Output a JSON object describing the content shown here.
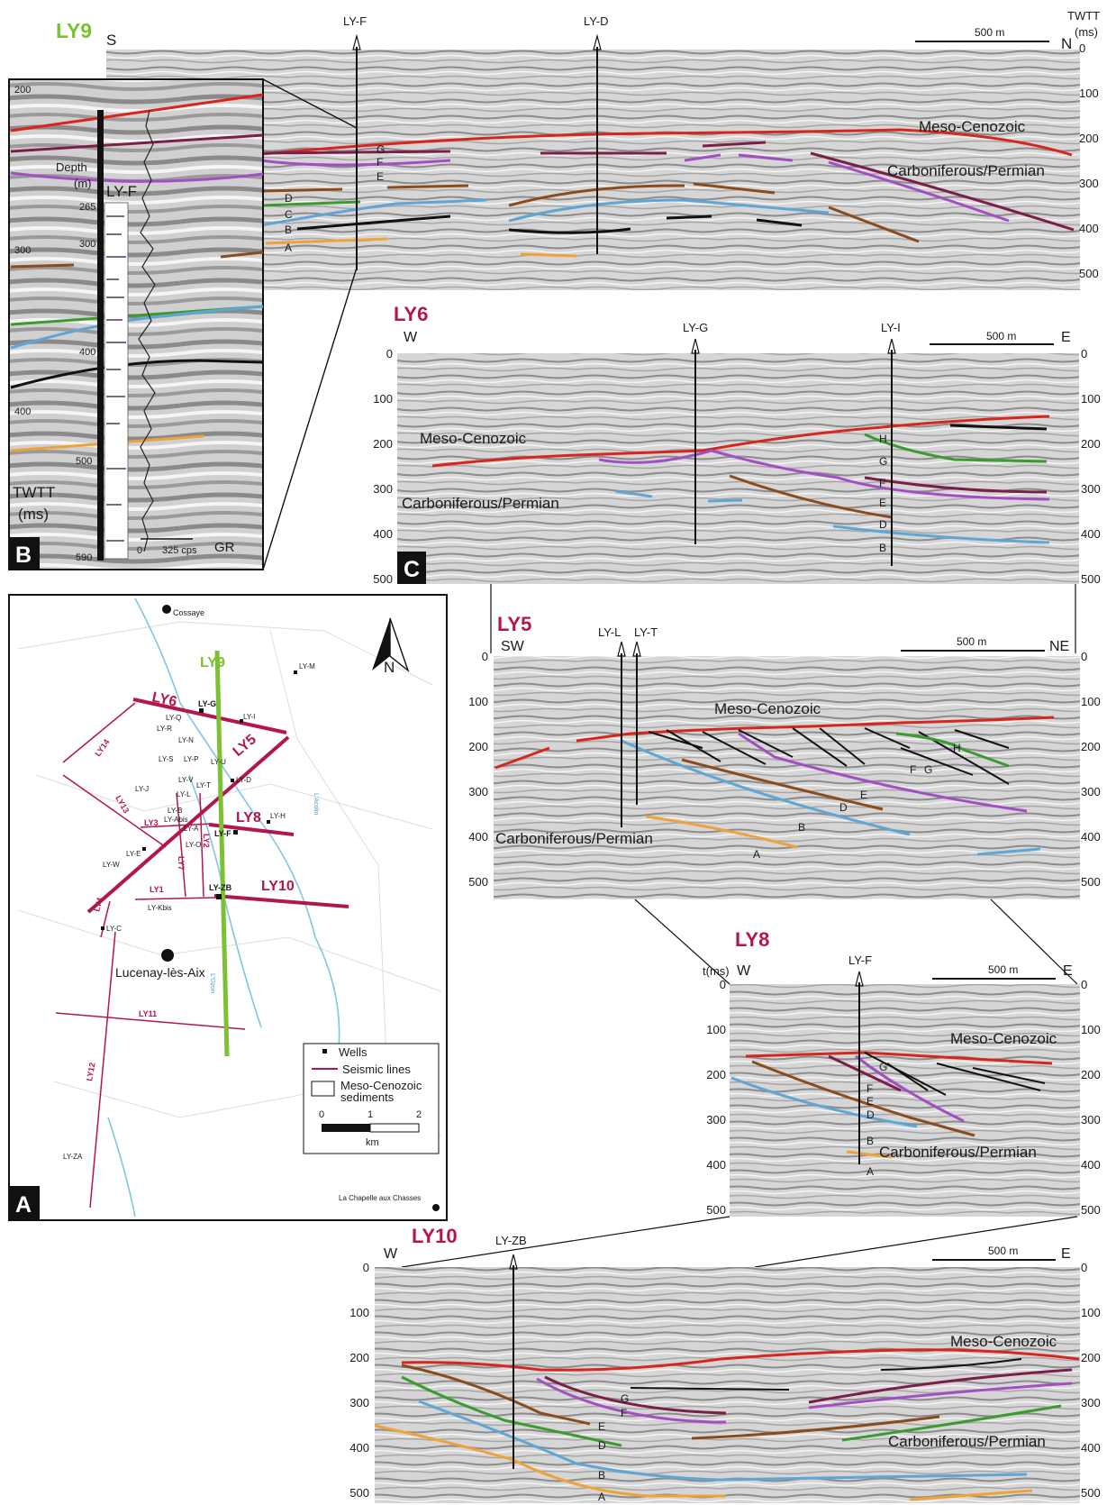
{
  "colors": {
    "red": "#d7261e",
    "purple": "#a24fc4",
    "maroon": "#7a1f4a",
    "brown": "#8a4b1d",
    "green": "#3a9b2e",
    "blue": "#5ea6d6",
    "orange": "#f0a23a",
    "black": "#111111",
    "map_line": "#b3174a",
    "map_green": "#7ac231",
    "map_river": "#7fc6e3",
    "title_green": "#7ac231",
    "title_red": "#b3174a",
    "seismic_bg": "#d4d4d4"
  },
  "panels": {
    "ly9": {
      "title": "LY9",
      "dir_left": "S",
      "dir_right": "N",
      "wells": [
        "LY-F",
        "LY-D"
      ],
      "scale": "500 m",
      "axis_title": "TWTT (ms)",
      "ticks": [
        "0",
        "100",
        "200",
        "300",
        "400",
        "500"
      ],
      "units": [
        "Meso-Cenozoic",
        "Carboniferous/Permian"
      ],
      "horizons": [
        "G",
        "F",
        "E",
        "D",
        "C",
        "B",
        "A"
      ]
    },
    "b": {
      "letter": "B",
      "ticks": [
        "200",
        "300",
        "400",
        "500",
        "590"
      ],
      "depth_label": "Depth (m)",
      "depths": [
        "265",
        "300",
        "400"
      ],
      "twtt_label": "TWTT (ms)",
      "well": "LY-F",
      "gr_ticks": [
        "0",
        "325 cps"
      ],
      "gr_label": "GR"
    },
    "ly6": {
      "title": "LY6",
      "letter": "C",
      "dir_left": "W",
      "dir_right": "E",
      "wells": [
        "LY-G",
        "LY-I"
      ],
      "scale": "500 m",
      "ticks": [
        "0",
        "100",
        "200",
        "300",
        "400",
        "500"
      ],
      "units": [
        "Meso-Cenozoic",
        "Carboniferous/Permian"
      ],
      "horizons": [
        "H",
        "G",
        "F",
        "E",
        "D",
        "B"
      ]
    },
    "ly5": {
      "title": "LY5",
      "dir_left": "SW",
      "dir_right": "NE",
      "wells": [
        "LY-L",
        "LY-T"
      ],
      "scale": "500 m",
      "ticks": [
        "0",
        "100",
        "200",
        "300",
        "400",
        "500"
      ],
      "units": [
        "Meso-Cenozoic",
        "Carboniferous/Permian"
      ],
      "horizons": [
        "H",
        "F",
        "G",
        "E",
        "D",
        "B",
        "A"
      ]
    },
    "ly8": {
      "title": "LY8",
      "axis_title": "t(ms)",
      "dir_left": "W",
      "dir_right": "E",
      "wells": [
        "LY-F"
      ],
      "scale": "500 m",
      "ticks": [
        "0",
        "100",
        "200",
        "300",
        "400",
        "500"
      ],
      "units": [
        "Meso-Cenozoic",
        "Carboniferous/Permian"
      ],
      "horizons": [
        "G",
        "F",
        "E",
        "D",
        "B",
        "A"
      ]
    },
    "ly10": {
      "title": "LY10",
      "dir_left": "W",
      "dir_right": "E",
      "wells": [
        "LY-ZB"
      ],
      "scale": "500 m",
      "ticks": [
        "0",
        "100",
        "200",
        "300",
        "400",
        "500"
      ],
      "units": [
        "Meso-Cenozoic",
        "Carboniferous/Permian"
      ],
      "horizons": [
        "G",
        "F",
        "E",
        "D",
        "B",
        "A"
      ]
    },
    "map": {
      "letter": "A",
      "north": "N",
      "towns": [
        "Cossaye",
        "Lucenay-lès-Aix",
        "La Chapelle aux Chasses"
      ],
      "lines": [
        "LY9",
        "LY6",
        "LY5",
        "LY8",
        "LY10",
        "LY14",
        "LY13",
        "LY3",
        "LY7",
        "LY2",
        "LY1",
        "LY4",
        "LY11",
        "LY12"
      ],
      "wells": [
        "LY-M",
        "LY-G",
        "LY-I",
        "LY-Q",
        "LY-R",
        "LY-N",
        "LY-S",
        "LY-P",
        "LY-U",
        "LY-D",
        "LY-V",
        "LY-T",
        "LY-J",
        "LY-L",
        "LY-B",
        "LY-Abis",
        "LY-A",
        "LY-H",
        "LY-F",
        "LY-O",
        "LY-E",
        "LY-W",
        "LY-ZB",
        "LY-Kbis",
        "LY-C",
        "LY-ZA"
      ],
      "rivers": [
        "L'Acolin",
        "L'Ozon"
      ],
      "legend": [
        "Wells",
        "Seismic lines",
        "Meso-Cenozoic sediments"
      ],
      "scale_ticks": [
        "0",
        "1",
        "2"
      ],
      "scale_unit": "km"
    }
  }
}
